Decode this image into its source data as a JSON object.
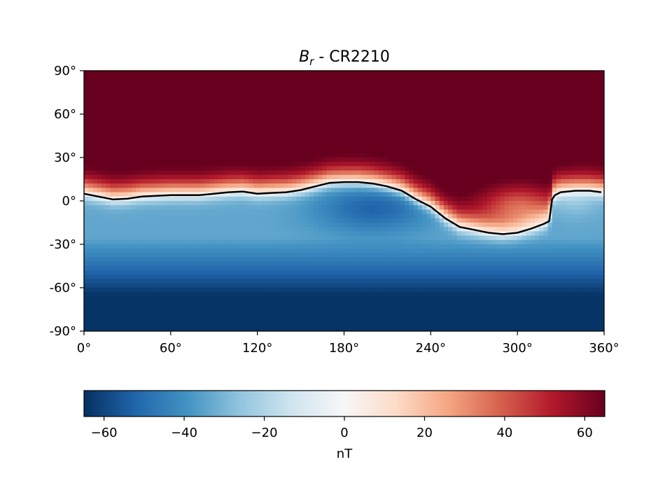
{
  "chart_data": {
    "type": "heatmap",
    "title": {
      "symbol": "B",
      "subscript": "r",
      "suffix": " - CR2210"
    },
    "xlabel": "",
    "ylabel": "",
    "xlim": [
      0,
      360
    ],
    "ylim": [
      -90,
      90
    ],
    "x_ticks": [
      0,
      60,
      120,
      180,
      240,
      300,
      360
    ],
    "x_tick_labels": [
      "0°",
      "60°",
      "120°",
      "180°",
      "240°",
      "300°",
      "360°"
    ],
    "y_ticks": [
      90,
      60,
      30,
      0,
      -30,
      -60,
      -90
    ],
    "y_tick_labels": [
      "90°",
      "60°",
      "30°",
      "0°",
      "-30°",
      "-60°",
      "-90°"
    ],
    "colormap": "RdBu_r",
    "color_range": [
      -65,
      65
    ],
    "colorbar": {
      "label": "nT",
      "ticks": [
        -60,
        -40,
        -20,
        0,
        20,
        40,
        60
      ],
      "tick_labels": [
        "−60",
        "−40",
        "−20",
        "0",
        "20",
        "40",
        "60"
      ]
    },
    "neutral_line": {
      "longitude": [
        0,
        10,
        20,
        30,
        40,
        50,
        60,
        70,
        80,
        90,
        100,
        110,
        120,
        130,
        140,
        150,
        160,
        170,
        180,
        190,
        200,
        210,
        220,
        230,
        240,
        250,
        260,
        270,
        280,
        290,
        300,
        310,
        318,
        322,
        324,
        326,
        330,
        340,
        350,
        358
      ],
      "latitude": [
        5,
        3,
        1,
        1.5,
        3,
        3.5,
        4,
        4,
        4,
        5,
        6,
        6.5,
        5,
        5.5,
        6,
        7.5,
        10,
        12.5,
        13,
        13,
        12,
        10,
        7,
        1,
        -4,
        -12,
        -18,
        -20,
        -22,
        -23,
        -22,
        -19,
        -16,
        -14,
        1,
        4,
        6,
        7,
        7,
        6
      ]
    }
  }
}
